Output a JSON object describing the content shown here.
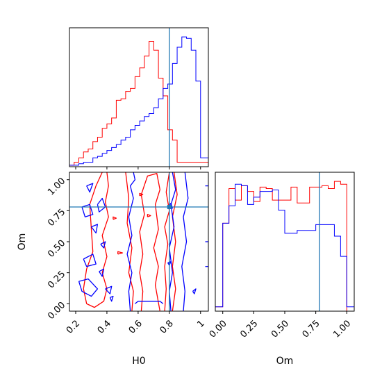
{
  "chart_data": {
    "type": "corner",
    "title": "",
    "params": [
      "H0",
      "Om"
    ],
    "truth": {
      "H0": 0.8,
      "Om": 0.78
    },
    "colors": {
      "red": "#ff0000",
      "blue": "#0000ff",
      "truth": "#1f77b4"
    },
    "panels": [
      {
        "id": "h0-hist",
        "type": "histogram",
        "xlim": [
          0.16,
          1.05
        ],
        "x_ticks": [
          0.2,
          0.4,
          0.6,
          0.8,
          1.0
        ],
        "bin_edges": [
          0.16,
          0.19,
          0.22,
          0.25,
          0.28,
          0.31,
          0.34,
          0.37,
          0.4,
          0.43,
          0.46,
          0.49,
          0.52,
          0.55,
          0.58,
          0.61,
          0.64,
          0.67,
          0.7,
          0.73,
          0.76,
          0.79,
          0.82,
          0.85,
          0.88,
          0.91,
          0.94,
          0.97,
          1.0,
          1.05
        ],
        "series": [
          {
            "name": "",
            "color": "red",
            "values": [
              0.01,
              0.03,
              0.06,
              0.1,
              0.12,
              0.17,
              0.2,
              0.26,
              0.29,
              0.33,
              0.45,
              0.46,
              0.51,
              0.53,
              0.61,
              0.67,
              0.75,
              0.85,
              0.79,
              0.6,
              0.48,
              0.25,
              0.18,
              0.03,
              0.03,
              0.03,
              0.03,
              0.03,
              0.03
            ]
          },
          {
            "name": "",
            "color": "blue",
            "values": [
              0.01,
              0.01,
              0.02,
              0.03,
              0.03,
              0.06,
              0.07,
              0.09,
              0.11,
              0.13,
              0.15,
              0.18,
              0.2,
              0.25,
              0.28,
              0.31,
              0.34,
              0.36,
              0.4,
              0.46,
              0.53,
              0.56,
              0.7,
              0.81,
              0.88,
              0.87,
              0.79,
              0.58,
              0.06
            ]
          }
        ]
      },
      {
        "id": "om-hist",
        "type": "histogram",
        "xlim": [
          -0.06,
          1.06
        ],
        "x_ticks": [
          0.0,
          0.25,
          0.5,
          0.75,
          1.0
        ],
        "x_tick_labels": [
          "0.00",
          "0.25",
          "0.50",
          "0.75",
          "1.00"
        ],
        "bin_edges": [
          -0.06,
          0.0,
          0.05,
          0.1,
          0.15,
          0.2,
          0.25,
          0.3,
          0.35,
          0.4,
          0.45,
          0.5,
          0.55,
          0.6,
          0.65,
          0.7,
          0.75,
          0.8,
          0.85,
          0.9,
          0.95,
          1.0,
          1.06
        ],
        "series": [
          {
            "name": "",
            "color": "red",
            "values": [
              0.03,
              0.61,
              0.85,
              0.77,
              0.87,
              0.83,
              0.76,
              0.86,
              0.85,
              0.77,
              0.77,
              0.77,
              0.86,
              0.75,
              0.75,
              0.86,
              0.86,
              0.87,
              0.85,
              0.9,
              0.88,
              0.0
            ]
          },
          {
            "name": "",
            "color": "blue",
            "values": [
              0.03,
              0.61,
              0.73,
              0.88,
              0.87,
              0.74,
              0.79,
              0.83,
              0.83,
              0.84,
              0.7,
              0.54,
              0.54,
              0.56,
              0.56,
              0.56,
              0.6,
              0.6,
              0.6,
              0.52,
              0.38,
              0.03
            ]
          }
        ]
      },
      {
        "id": "h0-om-contour",
        "type": "contour",
        "xlabel": "H0",
        "ylabel": "Om",
        "xlim": [
          0.16,
          1.05
        ],
        "ylim": [
          -0.06,
          1.06
        ],
        "x_ticks": [
          0.2,
          0.4,
          0.6,
          0.8,
          1.0
        ],
        "y_ticks": [
          0.0,
          0.25,
          0.5,
          0.75,
          1.0
        ],
        "y_tick_labels": [
          "0.00",
          "0.25",
          "0.50",
          "0.75",
          "1.00"
        ],
        "series": [
          {
            "name": "",
            "color": "red",
            "paths": [
              [
                [
                  0.37,
                  1.06
                ],
                [
                  0.33,
                  0.95
                ],
                [
                  0.29,
                  0.8
                ],
                [
                  0.3,
                  0.6
                ],
                [
                  0.31,
                  0.42
                ],
                [
                  0.27,
                  0.28
                ],
                [
                  0.25,
                  0.12
                ],
                [
                  0.27,
                  0.0
                ],
                [
                  0.32,
                  -0.03
                ],
                [
                  0.38,
                  0.02
                ],
                [
                  0.4,
                  0.12
                ],
                [
                  0.37,
                  0.25
                ],
                [
                  0.4,
                  0.38
                ],
                [
                  0.37,
                  0.55
                ],
                [
                  0.41,
                  0.7
                ],
                [
                  0.39,
                  0.82
                ],
                [
                  0.41,
                  0.95
                ],
                [
                  0.4,
                  1.06
                ]
              ],
              [
                [
                  0.52,
                  1.06
                ],
                [
                  0.54,
                  0.85
                ],
                [
                  0.53,
                  0.65
                ],
                [
                  0.56,
                  0.45
                ],
                [
                  0.54,
                  0.25
                ],
                [
                  0.57,
                  0.1
                ],
                [
                  0.56,
                  -0.06
                ]
              ],
              [
                [
                  0.62,
                  -0.06
                ],
                [
                  0.63,
                  0.1
                ],
                [
                  0.61,
                  0.25
                ],
                [
                  0.63,
                  0.4
                ],
                [
                  0.61,
                  0.58
                ],
                [
                  0.64,
                  0.72
                ],
                [
                  0.62,
                  0.88
                ],
                [
                  0.66,
                  1.03
                ],
                [
                  0.72,
                  1.05
                ],
                [
                  0.74,
                  0.92
                ],
                [
                  0.71,
                  0.8
                ],
                [
                  0.73,
                  0.6
                ],
                [
                  0.7,
                  0.45
                ],
                [
                  0.73,
                  0.3
                ],
                [
                  0.71,
                  0.15
                ],
                [
                  0.74,
                  -0.06
                ]
              ],
              [
                [
                  0.77,
                  -0.06
                ],
                [
                  0.78,
                  0.12
                ],
                [
                  0.77,
                  0.3
                ],
                [
                  0.79,
                  0.48
                ],
                [
                  0.77,
                  0.62
                ],
                [
                  0.8,
                  0.75
                ],
                [
                  0.78,
                  0.9
                ],
                [
                  0.8,
                  1.06
                ]
              ],
              [
                [
                  0.83,
                  1.06
                ],
                [
                  0.85,
                  0.88
                ],
                [
                  0.82,
                  0.7
                ],
                [
                  0.84,
                  0.5
                ],
                [
                  0.82,
                  0.3
                ],
                [
                  0.84,
                  0.12
                ],
                [
                  0.82,
                  -0.06
                ]
              ],
              [
                [
                  0.66,
                  0.7
                ],
                [
                  0.68,
                  0.71
                ],
                [
                  0.66,
                  0.72
                ],
                [
                  0.66,
                  0.7
                ]
              ],
              [
                [
                  0.44,
                  0.68
                ],
                [
                  0.46,
                  0.69
                ],
                [
                  0.44,
                  0.7
                ],
                [
                  0.44,
                  0.68
                ]
              ],
              [
                [
                  0.47,
                  0.4
                ],
                [
                  0.5,
                  0.41
                ],
                [
                  0.47,
                  0.42
                ],
                [
                  0.47,
                  0.4
                ]
              ],
              [
                [
                  0.61,
                  0.87
                ],
                [
                  0.63,
                  0.88
                ],
                [
                  0.61,
                  0.89
                ],
                [
                  0.61,
                  0.87
                ]
              ]
            ]
          },
          {
            "name": "",
            "color": "blue",
            "paths": [
              [
                [
                  0.27,
                  0.95
                ],
                [
                  0.31,
                  0.97
                ],
                [
                  0.29,
                  0.9
                ],
                [
                  0.27,
                  0.95
                ]
              ],
              [
                [
                  0.24,
                  0.78
                ],
                [
                  0.29,
                  0.8
                ],
                [
                  0.31,
                  0.72
                ],
                [
                  0.26,
                  0.7
                ],
                [
                  0.24,
                  0.78
                ]
              ],
              [
                [
                  0.3,
                  0.62
                ],
                [
                  0.34,
                  0.64
                ],
                [
                  0.33,
                  0.57
                ],
                [
                  0.3,
                  0.62
                ]
              ],
              [
                [
                  0.25,
                  0.36
                ],
                [
                  0.31,
                  0.4
                ],
                [
                  0.33,
                  0.32
                ],
                [
                  0.27,
                  0.3
                ],
                [
                  0.25,
                  0.36
                ]
              ],
              [
                [
                  0.22,
                  0.18
                ],
                [
                  0.28,
                  0.2
                ],
                [
                  0.34,
                  0.12
                ],
                [
                  0.3,
                  0.06
                ],
                [
                  0.24,
                  0.1
                ],
                [
                  0.22,
                  0.18
                ]
              ],
              [
                [
                  0.34,
                  0.8
                ],
                [
                  0.37,
                  0.85
                ],
                [
                  0.39,
                  0.78
                ],
                [
                  0.35,
                  0.74
                ],
                [
                  0.34,
                  0.8
                ]
              ],
              [
                [
                  0.36,
                  0.48
                ],
                [
                  0.39,
                  0.5
                ],
                [
                  0.38,
                  0.45
                ],
                [
                  0.36,
                  0.48
                ]
              ],
              [
                [
                  0.35,
                  0.26
                ],
                [
                  0.38,
                  0.28
                ],
                [
                  0.37,
                  0.22
                ],
                [
                  0.35,
                  0.26
                ]
              ],
              [
                [
                  0.39,
                  0.12
                ],
                [
                  0.43,
                  0.14
                ],
                [
                  0.42,
                  0.08
                ],
                [
                  0.39,
                  0.12
                ]
              ],
              [
                [
                  0.42,
                  0.05
                ],
                [
                  0.44,
                  0.06
                ],
                [
                  0.43,
                  0.02
                ],
                [
                  0.42,
                  0.05
                ]
              ],
              [
                [
                  0.55,
                  -0.06
                ],
                [
                  0.54,
                  0.1
                ],
                [
                  0.56,
                  0.25
                ],
                [
                  0.53,
                  0.4
                ],
                [
                  0.56,
                  0.55
                ],
                [
                  0.54,
                  0.7
                ],
                [
                  0.57,
                  0.85
                ],
                [
                  0.55,
                  0.95
                ],
                [
                  0.58,
                  1.0
                ],
                [
                  0.57,
                  1.06
                ]
              ],
              [
                [
                  0.81,
                  -0.06
                ],
                [
                  0.8,
                  0.1
                ],
                [
                  0.82,
                  0.25
                ],
                [
                  0.8,
                  0.45
                ],
                [
                  0.83,
                  0.62
                ],
                [
                  0.81,
                  0.8
                ],
                [
                  0.84,
                  0.92
                ],
                [
                  0.82,
                  1.06
                ]
              ],
              [
                [
                  0.89,
                  -0.06
                ],
                [
                  0.9,
                  0.1
                ],
                [
                  0.88,
                  0.3
                ],
                [
                  0.91,
                  0.5
                ],
                [
                  0.89,
                  0.7
                ],
                [
                  0.92,
                  0.85
                ],
                [
                  0.9,
                  1.06
                ]
              ],
              [
                [
                  0.58,
                  0.0
                ],
                [
                  0.6,
                  0.02
                ],
                [
                  0.74,
                  0.02
                ],
                [
                  0.76,
                  0.0
                ]
              ],
              [
                [
                  0.79,
                  0.33
                ],
                [
                  0.81,
                  0.34
                ],
                [
                  0.8,
                  0.31
                ],
                [
                  0.79,
                  0.33
                ]
              ],
              [
                [
                  0.79,
                  0.78
                ],
                [
                  0.81,
                  0.81
                ],
                [
                  0.82,
                  0.77
                ],
                [
                  0.79,
                  0.78
                ]
              ],
              [
                [
                  0.95,
                  0.1
                ],
                [
                  0.97,
                  0.12
                ],
                [
                  0.96,
                  0.08
                ],
                [
                  0.95,
                  0.1
                ]
              ],
              [
                [
                  1.03,
                  0.3
                ],
                [
                  1.05,
                  0.3
                ]
              ],
              [
                [
                  1.03,
                  0.5
                ],
                [
                  1.05,
                  0.5
                ]
              ],
              [
                [
                  1.03,
                  0.95
                ],
                [
                  1.05,
                  0.95
                ]
              ]
            ]
          }
        ]
      }
    ]
  }
}
